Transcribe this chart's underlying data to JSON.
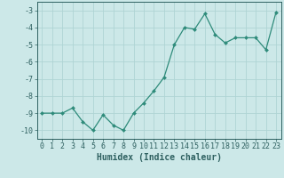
{
  "x": [
    0,
    1,
    2,
    3,
    4,
    5,
    6,
    7,
    8,
    9,
    10,
    11,
    12,
    13,
    14,
    15,
    16,
    17,
    18,
    19,
    20,
    21,
    22,
    23
  ],
  "y": [
    -9.0,
    -9.0,
    -9.0,
    -8.7,
    -9.5,
    -10.0,
    -9.1,
    -9.7,
    -10.0,
    -9.0,
    -8.4,
    -7.7,
    -6.9,
    -5.0,
    -4.0,
    -4.1,
    -3.2,
    -4.4,
    -4.9,
    -4.6,
    -4.6,
    -4.6,
    -5.3,
    -3.1
  ],
  "line_color": "#2e8b7a",
  "marker": "D",
  "marker_size": 2.0,
  "bg_color": "#cce8e8",
  "grid_color": "#afd4d4",
  "xlabel": "Humidex (Indice chaleur)",
  "xlim": [
    -0.5,
    23.5
  ],
  "ylim": [
    -10.5,
    -2.5
  ],
  "yticks": [
    -10,
    -9,
    -8,
    -7,
    -6,
    -5,
    -4,
    -3
  ],
  "xticks": [
    0,
    1,
    2,
    3,
    4,
    5,
    6,
    7,
    8,
    9,
    10,
    11,
    12,
    13,
    14,
    15,
    16,
    17,
    18,
    19,
    20,
    21,
    22,
    23
  ],
  "tick_color": "#2e6060",
  "label_fontsize": 7,
  "tick_fontsize": 6
}
